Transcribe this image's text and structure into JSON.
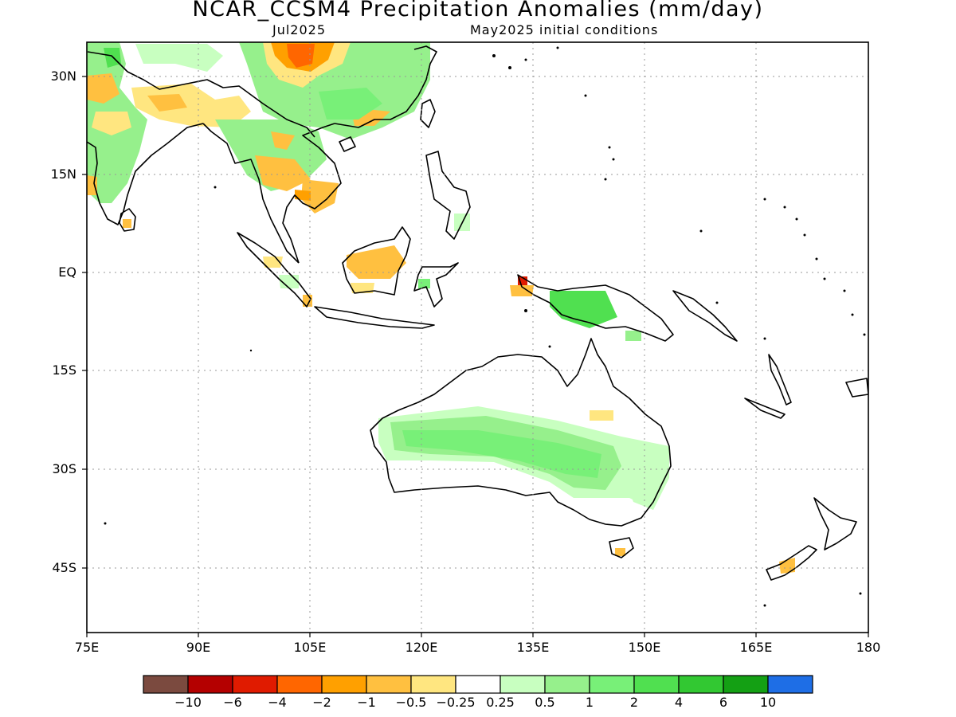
{
  "header": {
    "title": "NCAR_CCSM4 Precipitation Anomalies (mm/day)",
    "valid_month": "Jul2025",
    "init_conditions": "May2025 initial conditions"
  },
  "map": {
    "lon_range": [
      75,
      180
    ],
    "lat_range": [
      -50,
      35
    ],
    "lat_ticks": [
      {
        "value": 30,
        "label": "30N"
      },
      {
        "value": 15,
        "label": "15N"
      },
      {
        "value": 0,
        "label": "EQ"
      },
      {
        "value": -15,
        "label": "15S"
      },
      {
        "value": -30,
        "label": "30S"
      },
      {
        "value": -45,
        "label": "45S"
      }
    ],
    "lon_ticks": [
      {
        "value": 75,
        "label": "75E"
      },
      {
        "value": 90,
        "label": "90E"
      },
      {
        "value": 105,
        "label": "105E"
      },
      {
        "value": 120,
        "label": "120E"
      },
      {
        "value": 135,
        "label": "135E"
      },
      {
        "value": 150,
        "label": "150E"
      },
      {
        "value": 165,
        "label": "165E"
      },
      {
        "value": 180,
        "label": "180"
      }
    ],
    "grid": true
  },
  "colorbar": {
    "colors": [
      "#7b4a3f",
      "#b40000",
      "#e01b00",
      "#ff6600",
      "#ffa000",
      "#ffc040",
      "#ffe680",
      "#ffffff",
      "#c8ffc0",
      "#96f08c",
      "#78f078",
      "#50e050",
      "#32c832",
      "#14a014",
      "#1e6ee6"
    ],
    "labels": [
      "−10",
      "−6",
      "−4",
      "−2",
      "−1",
      "−0.5",
      "−0.25",
      "0.25",
      "0.5",
      "1",
      "2",
      "4",
      "6",
      "10"
    ]
  }
}
